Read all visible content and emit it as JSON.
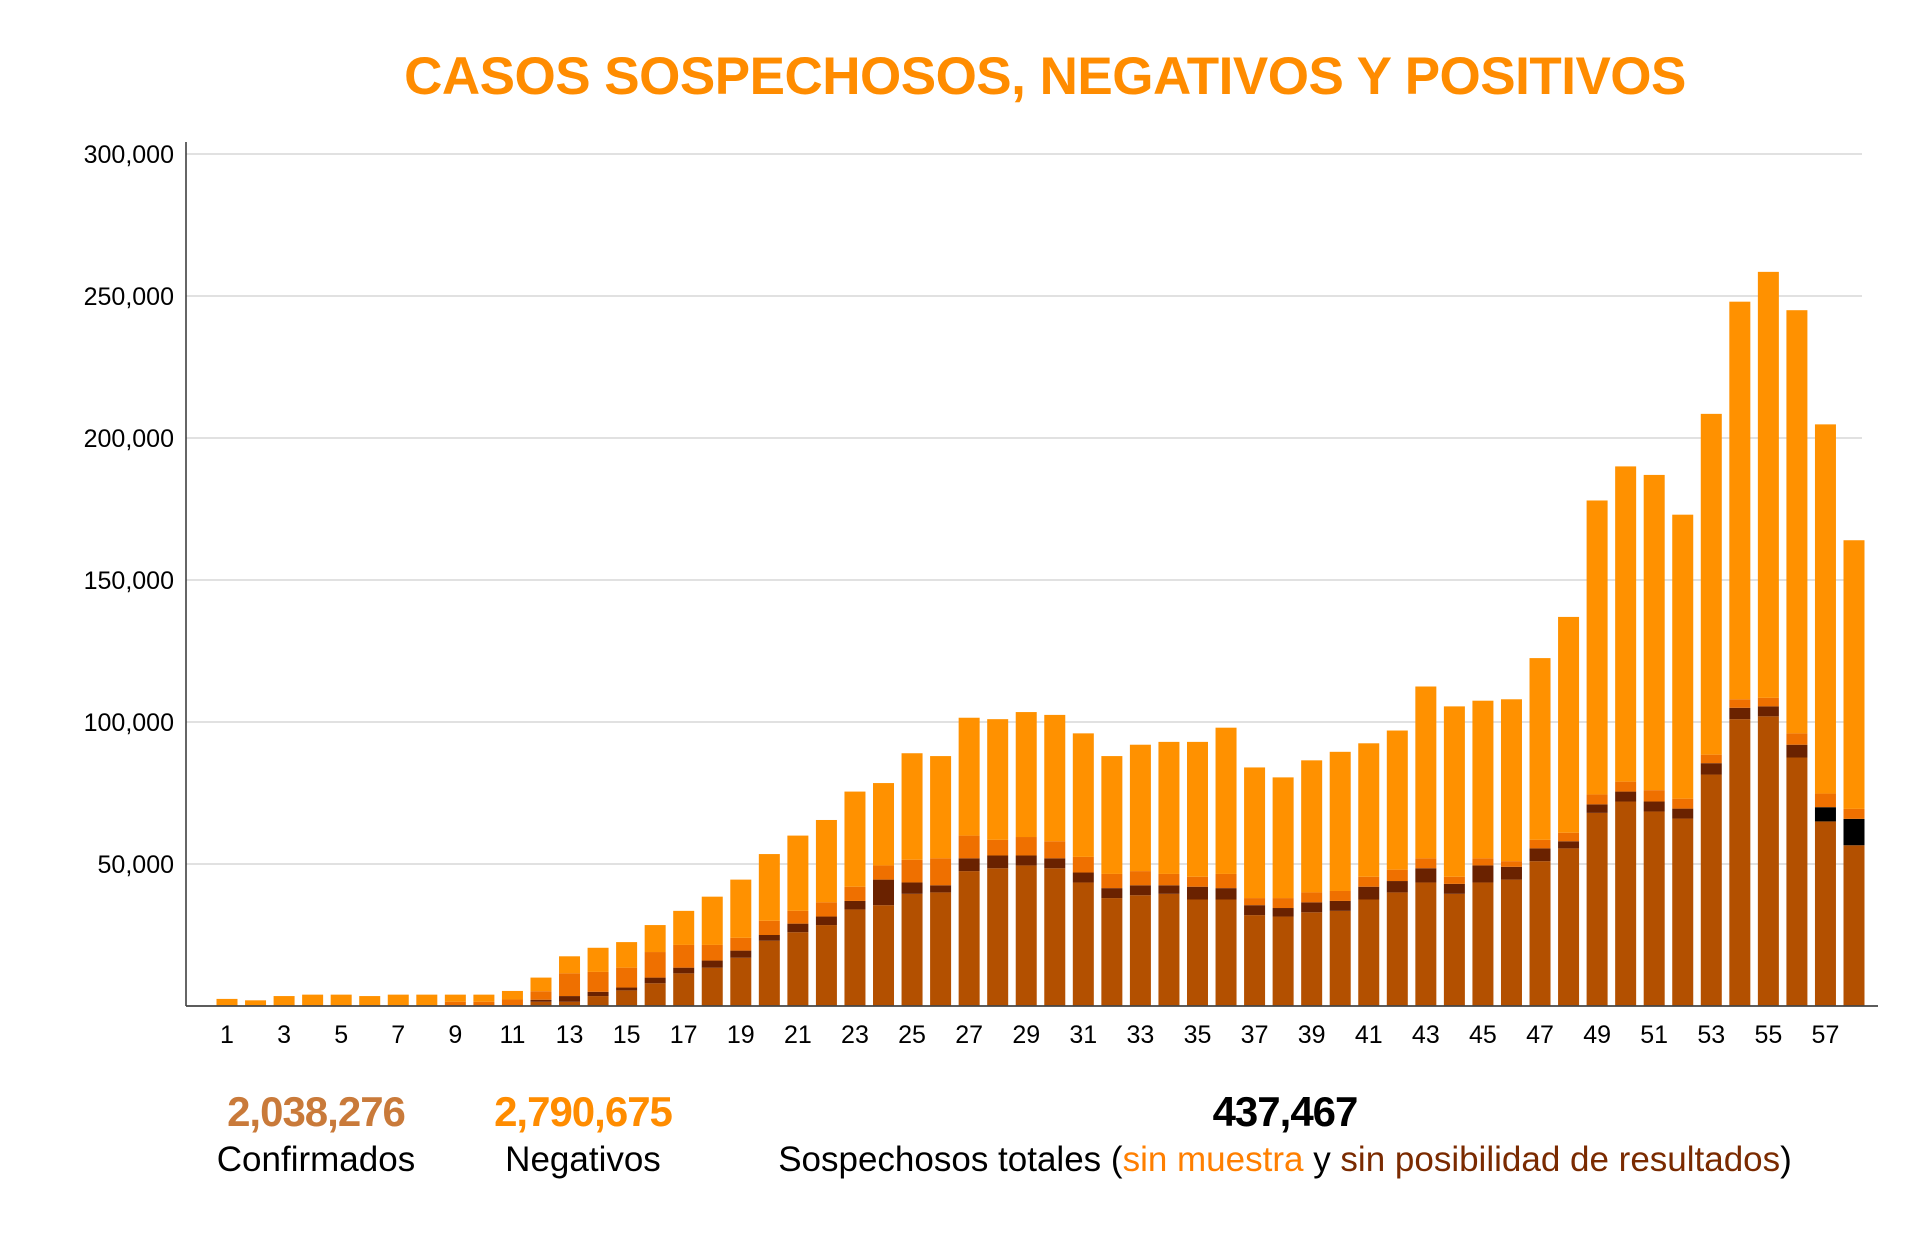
{
  "chart_data": {
    "type": "bar",
    "stacked": true,
    "title": "CASOS SOSPECHOSOS, NEGATIVOS Y POSITIVOS",
    "xlabel": "",
    "ylabel": "",
    "ylim": [
      0,
      300000
    ],
    "yticks": [
      "50,000",
      "100,000",
      "150,000",
      "200,000",
      "250,000",
      "300,000"
    ],
    "ytick_values": [
      50000,
      100000,
      150000,
      200000,
      250000,
      300000
    ],
    "grid": true,
    "x": [
      1,
      2,
      3,
      4,
      5,
      6,
      7,
      8,
      9,
      10,
      11,
      12,
      13,
      14,
      15,
      16,
      17,
      18,
      19,
      20,
      21,
      22,
      23,
      24,
      25,
      26,
      27,
      28,
      29,
      30,
      31,
      32,
      33,
      34,
      35,
      36,
      37,
      38,
      39,
      40,
      41,
      42,
      43,
      44,
      45,
      46,
      47,
      48,
      49,
      50,
      51,
      52,
      53,
      54,
      55,
      56,
      57,
      58
    ],
    "xtick_labels": [
      "1",
      "3",
      "5",
      "7",
      "9",
      "11",
      "13",
      "15",
      "17",
      "19",
      "21",
      "23",
      "25",
      "27",
      "29",
      "31",
      "33",
      "35",
      "37",
      "39",
      "41",
      "43",
      "45",
      "47",
      "49",
      "51",
      "53",
      "55",
      "57"
    ],
    "series": [
      {
        "name": "Confirmados",
        "color": "#b35000",
        "values": [
          0,
          0,
          0,
          0,
          0,
          0,
          0,
          0,
          0,
          0,
          300,
          1500,
          1500,
          3500,
          5500,
          8000,
          11500,
          13500,
          17000,
          23000,
          26000,
          28500,
          34000,
          35500,
          39500,
          40000,
          47500,
          48500,
          49500,
          48500,
          43500,
          38000,
          39000,
          39500,
          37500,
          37500,
          32000,
          31500,
          33000,
          33500,
          37500,
          40000,
          43500,
          39500,
          43500,
          44500,
          51000,
          55500,
          68000,
          72000,
          68500,
          66000,
          81500,
          101000,
          102000,
          87500,
          65000,
          56600
        ]
      },
      {
        "color": "#000000",
        "values": [
          0,
          0,
          0,
          0,
          0,
          0,
          0,
          0,
          0,
          0,
          0,
          0,
          0,
          0,
          0,
          0,
          0,
          0,
          0,
          0,
          0,
          0,
          0,
          0,
          0,
          0,
          0,
          0,
          0,
          0,
          0,
          0,
          0,
          0,
          0,
          0,
          0,
          0,
          0,
          0,
          0,
          0,
          0,
          0,
          0,
          0,
          0,
          0,
          0,
          0,
          0,
          0,
          0,
          0,
          0,
          0,
          5000,
          9300
        ]
      },
      {
        "name": "sin posibilidad de resultados",
        "color": "#6a2200",
        "values": [
          0,
          0,
          0,
          0,
          0,
          0,
          0,
          0,
          0,
          0,
          0,
          700,
          2000,
          1500,
          1000,
          2000,
          2000,
          2500,
          2500,
          2000,
          3000,
          3000,
          3000,
          9000,
          4000,
          2500,
          4500,
          4500,
          3500,
          3500,
          3500,
          3500,
          3500,
          3000,
          4500,
          4000,
          3500,
          3000,
          3500,
          3500,
          4500,
          4000,
          5000,
          3500,
          6000,
          4500,
          4500,
          2500,
          3000,
          3500,
          3500,
          3500,
          4000,
          4000,
          3500,
          4500,
          0,
          0
        ]
      },
      {
        "name": "sin muestra",
        "color": "#ef7000",
        "values": [
          0,
          0,
          0,
          0,
          0,
          0,
          0,
          0,
          1500,
          1500,
          2000,
          3000,
          8000,
          7000,
          7000,
          9000,
          8000,
          5500,
          4500,
          5000,
          4500,
          5000,
          5000,
          5000,
          8000,
          9500,
          8000,
          5500,
          6500,
          6000,
          5500,
          5000,
          5000,
          4000,
          3500,
          5000,
          2500,
          3500,
          3500,
          3500,
          3500,
          4000,
          3500,
          2500,
          2500,
          2000,
          3000,
          3000,
          3500,
          3500,
          4000,
          3500,
          3000,
          3000,
          3000,
          4000,
          4800,
          3500
        ]
      },
      {
        "name": "Negativos",
        "color": "#ff9100",
        "values": [
          2500,
          2000,
          3500,
          4000,
          4000,
          3500,
          4000,
          4000,
          2500,
          2500,
          3000,
          4800,
          6000,
          8500,
          9000,
          9500,
          12000,
          17000,
          20500,
          23500,
          26500,
          29000,
          33500,
          29000,
          37500,
          36000,
          41500,
          42500,
          44000,
          44500,
          43500,
          41500,
          44500,
          46500,
          47500,
          51500,
          46000,
          42500,
          46500,
          49000,
          47000,
          49000,
          60500,
          60000,
          55500,
          57000,
          64000,
          76000,
          103500,
          111000,
          111000,
          100000,
          120000,
          140000,
          150000,
          149000,
          130000,
          94600
        ]
      }
    ]
  },
  "summary": {
    "confirmados": {
      "value": "2,038,276",
      "label": "Confirmados",
      "color": "#c97a3a"
    },
    "negativos": {
      "value": "2,790,675",
      "label": "Negativos",
      "color": "#ff8c00"
    },
    "sospechosos": {
      "value": "437,467",
      "label_start": "Sospechosos totales (",
      "sin_muestra": "sin muestra",
      "conjunction": " y ",
      "sin_posibilidad": "sin posibilidad de resultados",
      "label_end": ")",
      "sin_muestra_color": "#ff7f00",
      "sin_posibilidad_color": "#7a2a00"
    }
  }
}
